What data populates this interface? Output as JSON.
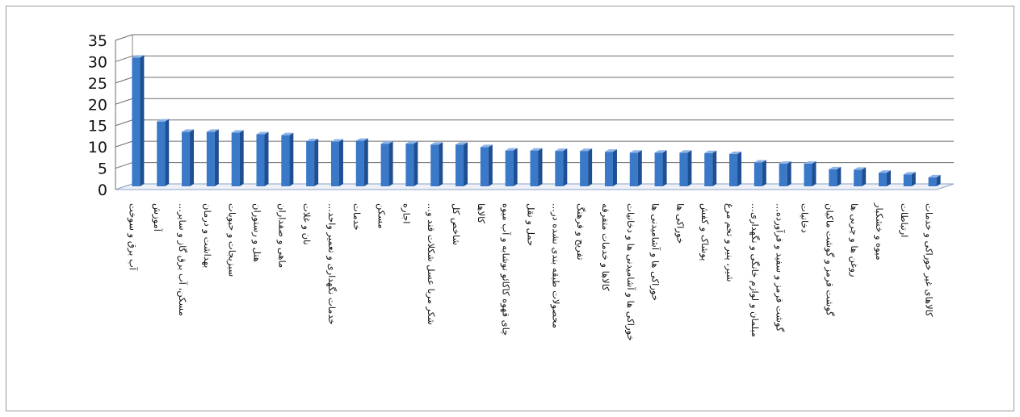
{
  "chart_data": {
    "type": "bar",
    "title": "",
    "xlabel": "",
    "ylabel": "",
    "ylim": [
      0,
      35
    ],
    "yticks": [
      0,
      5,
      10,
      15,
      20,
      25,
      30,
      35
    ],
    "grid": true,
    "legend": "none",
    "bar_color": "#3a78c8",
    "categories": [
      "آب برق و سوخت",
      "آموزش",
      "مسکن، آب برق گاز و سایر...",
      "بهداشت و درمان",
      "سبزیجات و حبوبات",
      "هتل و رستوران",
      "ماهی و صفداران",
      "نان و غلات",
      "خدمات نگهداری و تعمیر واحد...",
      "خدمات",
      "مسکن",
      "اجاره",
      "شکر مربا عسل شکلات قند و...",
      "شاخص کل",
      "کالاها",
      "چای قهوه کاکائو نوشابه و آب میوه",
      "حمل و نقل",
      "محصولات طبقه بندی نشده در...",
      "تفریح و فرهنگ",
      "کالاها و خدمات متفرقه",
      "خوراکی ها و آشامیدنی ها و دخانیات",
      "خوراکی ها و آشامیدنی ها",
      "خوراکی ها",
      "پوشاک و کفش",
      "شیر، پنیر و تخم مرغ",
      "مبلمان و لوازم خانگی و نگهداری...",
      "گوشت قرمز و سفید و فرآورده...",
      "دخانیات",
      "گوشت قرمز و گوشت ماکیان",
      "روغن ها و چربی ها",
      "میوه و خشکبار",
      "ارتباطات",
      "کالاهای غیر خوراکی و خدمات"
    ],
    "values": [
      30.2,
      15.2,
      12.8,
      12.8,
      12.6,
      12.2,
      12.0,
      10.6,
      10.5,
      10.7,
      10.0,
      10.0,
      9.8,
      9.8,
      9.2,
      8.4,
      8.4,
      8.3,
      8.3,
      8.1,
      7.9,
      7.9,
      7.9,
      7.8,
      7.6,
      5.6,
      5.3,
      5.3,
      4.0,
      3.9,
      3.2,
      2.8,
      2.1
    ]
  }
}
